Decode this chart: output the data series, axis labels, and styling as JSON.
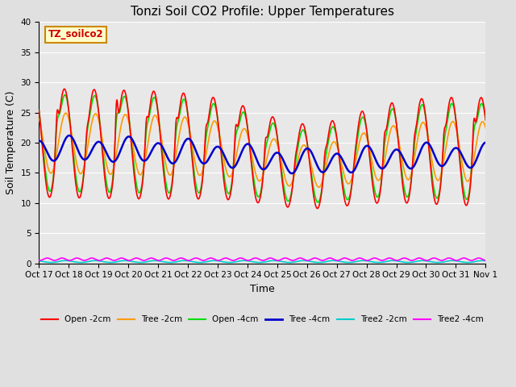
{
  "title": "Tonzi Soil CO2 Profile: Upper Temperatures",
  "xlabel": "Time",
  "ylabel": "Soil Temperature (C)",
  "ylim": [
    0,
    40
  ],
  "xlim": [
    0,
    15
  ],
  "background_color": "#e0e0e0",
  "plot_bg_color": "#e8e8e8",
  "watermark_text": "TZ_soilco2",
  "watermark_bg": "#ffffcc",
  "watermark_border": "#cc8800",
  "xtick_labels": [
    "Oct 17",
    "Oct 18",
    "Oct 19",
    "Oct 20",
    "Oct 21",
    "Oct 22",
    "Oct 23",
    "Oct 24",
    "Oct 25",
    "Oct 26",
    "Oct 27",
    "Oct 28",
    "Oct 29",
    "Oct 30",
    "Oct 31",
    "Nov 1"
  ],
  "series": {
    "Open -2cm": {
      "color": "#ff0000",
      "lw": 1.2
    },
    "Tree -2cm": {
      "color": "#ff9900",
      "lw": 1.2
    },
    "Open -4cm": {
      "color": "#00dd00",
      "lw": 1.2
    },
    "Tree -4cm": {
      "color": "#0000cc",
      "lw": 1.8
    },
    "Tree2 -2cm": {
      "color": "#00cccc",
      "lw": 1.2
    },
    "Tree2 -4cm": {
      "color": "#ff00ff",
      "lw": 1.2
    }
  },
  "grid_color": "#ffffff",
  "title_fontsize": 11,
  "axis_label_fontsize": 9,
  "tick_fontsize": 7.5
}
